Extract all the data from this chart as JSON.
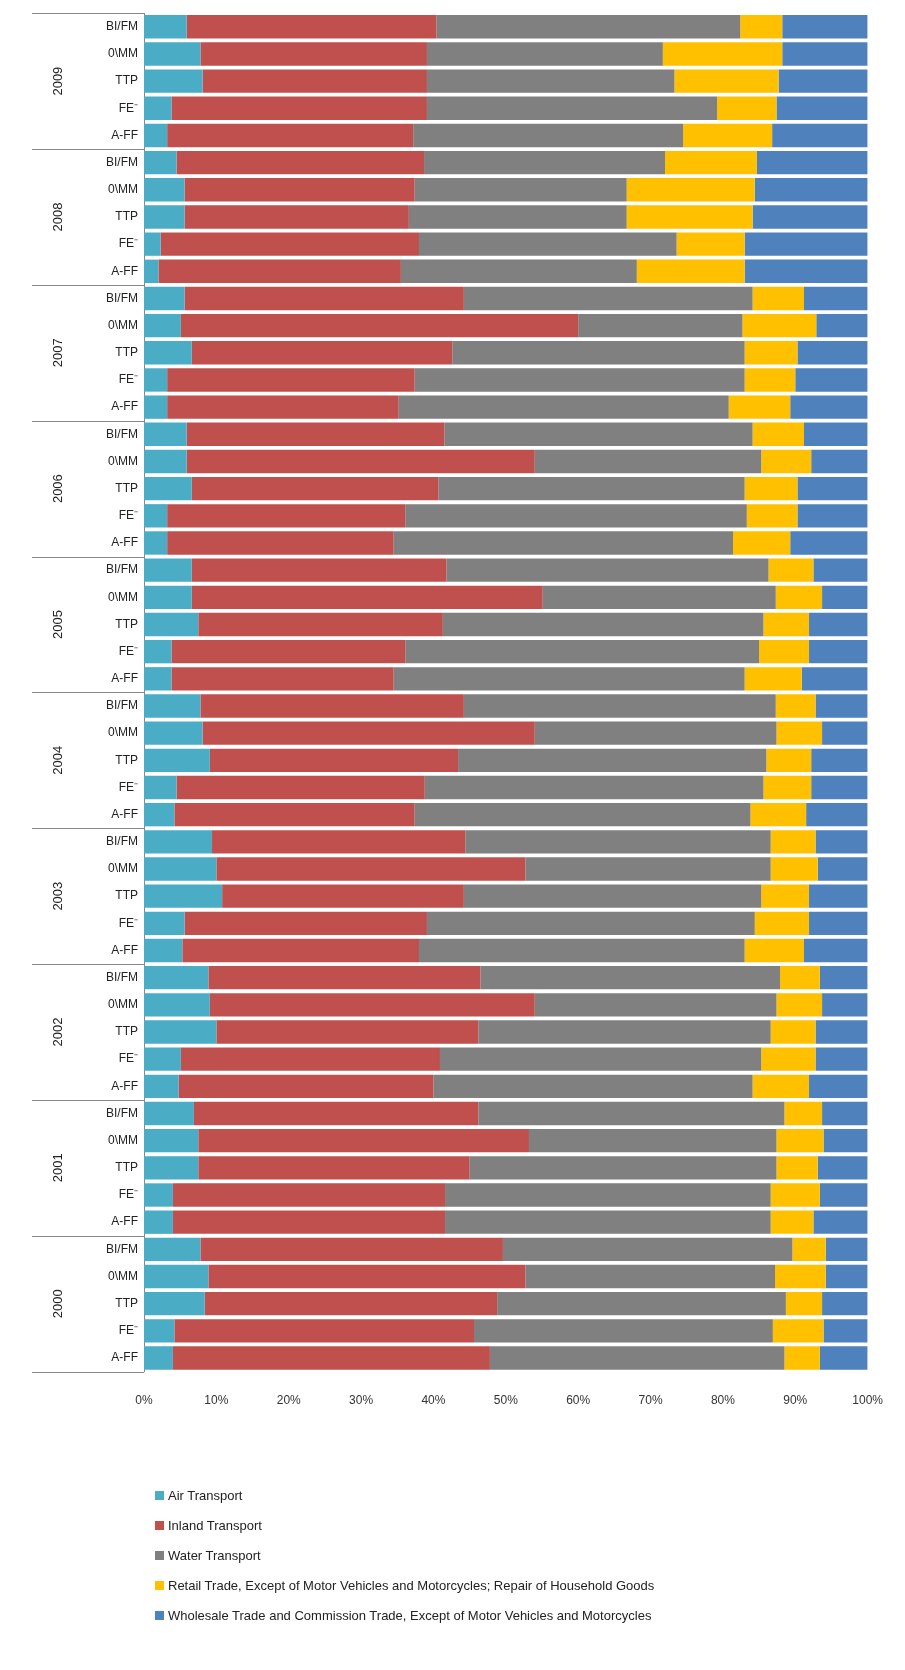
{
  "chart_data": {
    "type": "bar",
    "orientation": "horizontal",
    "stacked": true,
    "grid": false,
    "legend": "bottom",
    "categories": [
      "BI/FM",
      "0\\MM",
      "TTP",
      "FE⁻",
      "A-FF",
      "BI/FM",
      "0\\MM",
      "TTP",
      "FE⁻",
      "A-FF",
      "BI/FM",
      "0\\MM",
      "TTP",
      "FE⁻",
      "A-FF",
      "BI/FM",
      "0\\MM",
      "TTP",
      "FE⁻",
      "A-FF",
      "BI/FM",
      "0\\MM",
      "TTP",
      "FE⁻",
      "A-FF",
      "BI/FM",
      "0\\MM",
      "TTP",
      "FE⁻",
      "A-FF",
      "BI/FM",
      "0\\MM",
      "TTP",
      "FE⁻",
      "A-FF",
      "BI/FM",
      "0\\MM",
      "TTP",
      "FE⁻",
      "A-FF",
      "BI/FM",
      "0\\MM",
      "TTP",
      "FE⁻",
      "A-FF",
      "BI/FM",
      "0\\MM",
      "TTP",
      "FE⁻",
      "A-FF"
    ],
    "annotations": [
      "2009",
      "2008",
      "2007",
      "2006",
      "2005",
      "2004",
      "2003",
      "2002",
      "2001",
      "2000"
    ],
    "xlim": [
      0,
      100
    ],
    "xticks": [
      {
        "value": 0,
        "label": "0%"
      },
      {
        "value": 10,
        "label": "10%"
      },
      {
        "value": 20,
        "label": "20%"
      },
      {
        "value": 30,
        "label": "30%"
      },
      {
        "value": 40,
        "label": "40%"
      },
      {
        "value": 50,
        "label": "50%"
      },
      {
        "value": 60,
        "label": "60%"
      },
      {
        "value": 70,
        "label": "70%"
      },
      {
        "value": 80,
        "label": "80%"
      },
      {
        "value": 90,
        "label": "90%"
      },
      {
        "value": 100,
        "label": "100%"
      }
    ],
    "series": [
      {
        "name": "Air Transport",
        "color": "#4bacc6",
        "values": [
          5.9,
          7.8,
          8.1,
          3.8,
          3.2,
          4.5,
          5.6,
          5.6,
          2.3,
          2.0,
          5.6,
          5.1,
          6.6,
          3.2,
          3.2,
          5.9,
          5.9,
          6.6,
          3.2,
          3.2,
          6.6,
          6.6,
          7.5,
          3.8,
          3.8,
          7.8,
          8.1,
          9.1,
          4.5,
          4.2,
          9.4,
          10.0,
          10.8,
          5.6,
          5.3,
          8.9,
          9.1,
          10.0,
          5.1,
          4.8,
          6.9,
          7.5,
          7.5,
          4.0,
          4.0,
          7.8,
          8.9,
          8.4,
          4.2,
          4.0
        ]
      },
      {
        "name": "Inland Transport",
        "color": "#c0504d",
        "values": [
          34.5,
          31.3,
          31.0,
          35.3,
          34.0,
          34.2,
          31.8,
          31.0,
          35.7,
          33.5,
          38.6,
          54.9,
          36.0,
          34.2,
          32.0,
          35.6,
          48.1,
          34.1,
          32.9,
          31.3,
          35.2,
          48.5,
          33.8,
          32.3,
          30.7,
          36.4,
          45.9,
          34.3,
          34.3,
          33.2,
          35.0,
          42.7,
          33.4,
          33.5,
          32.7,
          37.6,
          44.9,
          36.2,
          35.8,
          35.2,
          39.3,
          45.7,
          37.5,
          37.6,
          37.6,
          41.8,
          43.8,
          40.4,
          41.4,
          43.8
        ]
      },
      {
        "name": "Water Transport",
        "color": "#808080",
        "values": [
          42.0,
          32.6,
          34.2,
          40.1,
          37.3,
          33.3,
          29.3,
          30.1,
          35.6,
          32.6,
          39.9,
          22.7,
          40.4,
          45.6,
          45.6,
          42.6,
          31.3,
          42.3,
          47.2,
          46.9,
          44.5,
          32.2,
          44.3,
          48.9,
          48.5,
          43.1,
          33.4,
          42.6,
          46.8,
          46.4,
          42.2,
          33.9,
          41.1,
          45.3,
          45.0,
          41.4,
          33.4,
          40.4,
          44.4,
          44.1,
          42.3,
          34.2,
          42.4,
          45.0,
          45.0,
          40.0,
          34.5,
          39.9,
          41.3,
          40.7
        ]
      },
      {
        "name": "Retail Trade, Except of Motor Vehicles and Motorcycles; Repair of Household Goods",
        "color": "#ffc000",
        "values": [
          5.8,
          16.5,
          14.4,
          8.2,
          12.3,
          12.7,
          17.7,
          17.4,
          9.4,
          14.9,
          7.1,
          10.2,
          7.3,
          7.0,
          8.5,
          7.1,
          6.9,
          7.3,
          7.0,
          7.9,
          6.2,
          6.4,
          6.3,
          6.9,
          7.9,
          5.5,
          6.3,
          6.2,
          6.6,
          7.7,
          6.2,
          6.5,
          6.6,
          7.5,
          8.2,
          5.5,
          6.3,
          6.2,
          7.5,
          7.8,
          5.2,
          6.5,
          5.7,
          6.8,
          5.9,
          4.6,
          7.0,
          5.0,
          7.0,
          4.9
        ]
      },
      {
        "name": "Wholesale Trade and Commission Trade, Except of Motor Vehicles and Motorcycles",
        "color": "#4f81bd",
        "values": [
          11.8,
          11.8,
          12.3,
          12.6,
          13.2,
          15.3,
          15.6,
          15.9,
          17.0,
          17.0,
          8.8,
          7.1,
          9.7,
          10.0,
          10.7,
          8.8,
          7.8,
          9.7,
          9.7,
          10.7,
          7.5,
          6.3,
          8.1,
          8.1,
          9.1,
          7.2,
          6.3,
          7.8,
          7.8,
          8.5,
          7.2,
          6.9,
          8.1,
          8.1,
          8.8,
          6.6,
          6.3,
          7.2,
          7.2,
          8.1,
          6.3,
          6.1,
          6.9,
          6.6,
          7.5,
          5.8,
          5.8,
          6.3,
          6.1,
          6.6
        ]
      }
    ]
  }
}
